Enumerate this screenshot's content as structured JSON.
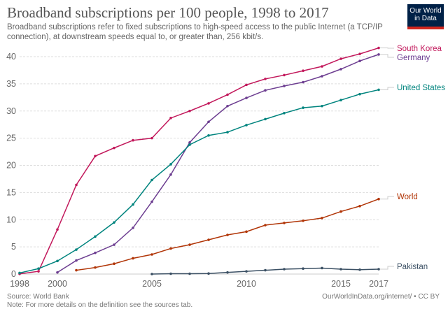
{
  "header": {
    "title": "Broadband subscriptions per 100 people, 1998 to 2017",
    "subtitle": "Broadband subscriptions refer to fixed subscriptions to high-speed access to the public Internet (a TCP/IP connection), at downstream speeds equal to, or greater than, 256 kbit/s.",
    "logo": "Our World in Data"
  },
  "footer": {
    "source": "Source: World Bank",
    "note": "Note: For more details on the definition see the sources tab.",
    "credit": "OurWorldInData.org/internet/ • CC BY"
  },
  "chart_data": {
    "type": "line",
    "title": "Broadband subscriptions per 100 people, 1998 to 2017",
    "xlim": [
      1998,
      2017
    ],
    "ylim": [
      0,
      40
    ],
    "x_ticks": [
      1998,
      2000,
      2005,
      2010,
      2015,
      2017
    ],
    "y_ticks": [
      0,
      5,
      10,
      15,
      20,
      25,
      30,
      35,
      40
    ],
    "grid": "horizontal dashed",
    "legend": "right, labels at line ends",
    "series": [
      {
        "name": "South Korea",
        "color": "#c2185b",
        "start": 1998,
        "values": [
          0.03,
          0.5,
          8.2,
          16.4,
          21.7,
          23.2,
          24.6,
          25.0,
          28.7,
          30.0,
          31.4,
          33.0,
          34.8,
          35.9,
          36.6,
          37.4,
          38.2,
          39.6,
          40.5,
          41.6
        ]
      },
      {
        "name": "Germany",
        "color": "#6d3e91",
        "start": 2000,
        "values": [
          0.3,
          2.5,
          3.9,
          5.4,
          8.5,
          13.3,
          18.3,
          24.2,
          28.0,
          30.9,
          32.4,
          33.8,
          34.6,
          35.3,
          36.4,
          37.7,
          39.2,
          40.4
        ]
      },
      {
        "name": "United States",
        "color": "#00847e",
        "start": 1998,
        "values": [
          0.2,
          1.0,
          2.4,
          4.5,
          6.9,
          9.5,
          12.8,
          17.3,
          20.2,
          23.8,
          25.5,
          26.1,
          27.4,
          28.5,
          29.6,
          30.6,
          30.9,
          32.0,
          33.1,
          33.9
        ]
      },
      {
        "name": "World",
        "color": "#b13507",
        "start": 2001,
        "values": [
          0.7,
          1.2,
          1.9,
          2.9,
          3.6,
          4.7,
          5.4,
          6.3,
          7.2,
          7.8,
          9.0,
          9.4,
          9.8,
          10.3,
          11.5,
          12.5,
          13.8
        ]
      },
      {
        "name": "Pakistan",
        "color": "#3a4f63",
        "start": 2005,
        "values": [
          0.0,
          0.06,
          0.06,
          0.1,
          0.3,
          0.5,
          0.7,
          0.9,
          1.0,
          1.1,
          0.9,
          0.8,
          0.9
        ]
      }
    ]
  }
}
